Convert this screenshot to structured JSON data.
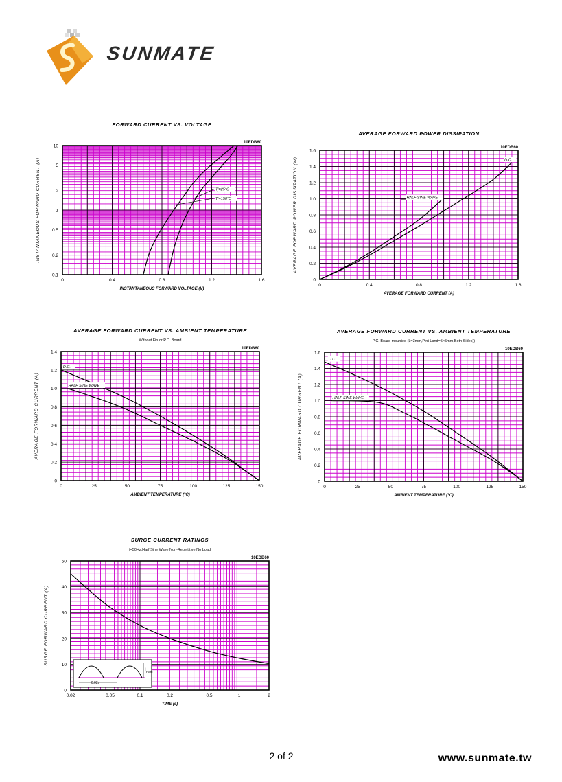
{
  "header": {
    "brand": "SUNMATE",
    "logo_icon": "sunmate-logo-icon"
  },
  "footer": {
    "page": "2 of 2",
    "website": "www.sunmate.tw"
  },
  "colors": {
    "grid": "#cc00cc",
    "curve": "#000000",
    "major_grid": "#000000"
  },
  "chart_data": [
    {
      "id": "fv",
      "type": "line",
      "title": "FORWARD CURRENT VS. VOLTAGE",
      "subtitle": "",
      "part": "10EDB60",
      "xlabel": "INSTANTANEOUS FORWARD VOLTAGE (V)",
      "ylabel": "INSTANTANEOUS FORWARD CURRENT (A)",
      "xscale": "linear",
      "yscale": "log",
      "xlim": [
        0,
        1.6
      ],
      "ylim": [
        0.1,
        10
      ],
      "xticks": [
        0,
        0.4,
        0.8,
        1.2,
        1.6
      ],
      "xtick_labels": [
        "0",
        "0.4",
        "0.8",
        "1.2",
        "1.6"
      ],
      "yticks": [
        0.1,
        0.2,
        0.5,
        1,
        2,
        5,
        10
      ],
      "ytick_labels": [
        "0.1",
        "0.2",
        "0.5",
        "1",
        "2",
        "5",
        "10"
      ],
      "series": [
        {
          "name": "Tj=25°C",
          "points": [
            [
              0.85,
              0.1
            ],
            [
              0.9,
              0.27
            ],
            [
              0.97,
              0.65
            ],
            [
              1.05,
              1.3
            ],
            [
              1.12,
              2.1
            ],
            [
              1.2,
              3.2
            ],
            [
              1.28,
              4.8
            ],
            [
              1.36,
              7.2
            ],
            [
              1.41,
              10
            ]
          ]
        },
        {
          "name": "Tj=150°C",
          "points": [
            [
              0.65,
              0.1
            ],
            [
              0.7,
              0.22
            ],
            [
              0.78,
              0.45
            ],
            [
              0.87,
              0.85
            ],
            [
              0.96,
              1.5
            ],
            [
              1.05,
              2.6
            ],
            [
              1.14,
              4.0
            ],
            [
              1.22,
              5.5
            ],
            [
              1.32,
              8.0
            ],
            [
              1.38,
              10
            ]
          ]
        }
      ],
      "annotations": [
        {
          "text": "Tj=25°C",
          "x": 1.23,
          "y": 2.0,
          "target": [
            1.05,
            1.5
          ]
        },
        {
          "text": "Tj=150°C",
          "x": 1.23,
          "y": 1.45,
          "target": [
            0.9,
            1.2
          ]
        }
      ]
    },
    {
      "id": "pd",
      "type": "line",
      "title": "AVERAGE FORWARD POWER DISSIPATION",
      "subtitle": "",
      "part": "10EDB60",
      "xlabel": "AVERAGE FORWARD CURRENT (A)",
      "ylabel": "AVERAGE FORWARD POWER DISSIPATION (W)",
      "xscale": "linear",
      "yscale": "linear",
      "xlim": [
        0,
        1.6
      ],
      "ylim": [
        0,
        1.6
      ],
      "xticks": [
        0,
        0.4,
        0.8,
        1.2,
        1.6
      ],
      "xtick_labels": [
        "0",
        "0.4",
        "0.8",
        "1.2",
        "1.6"
      ],
      "yticks": [
        0,
        0.2,
        0.4,
        0.6,
        0.8,
        1.0,
        1.2,
        1.4,
        1.6
      ],
      "ytick_labels": [
        "0",
        "0.2",
        "0.4",
        "0.6",
        "0.8",
        "1.0",
        "1.2",
        "1.4",
        "1.6"
      ],
      "series": [
        {
          "name": "D.C.",
          "points": [
            [
              0,
              0
            ],
            [
              0.2,
              0.14
            ],
            [
              0.4,
              0.3
            ],
            [
              0.6,
              0.48
            ],
            [
              0.8,
              0.66
            ],
            [
              1.0,
              0.85
            ],
            [
              1.2,
              1.04
            ],
            [
              1.4,
              1.24
            ],
            [
              1.55,
              1.45
            ]
          ]
        },
        {
          "name": "HALF SINE WAVE",
          "points": [
            [
              0,
              0
            ],
            [
              0.2,
              0.15
            ],
            [
              0.4,
              0.33
            ],
            [
              0.6,
              0.53
            ],
            [
              0.8,
              0.74
            ],
            [
              0.98,
              0.98
            ]
          ]
        }
      ],
      "annotations": [
        {
          "text": "D.C.",
          "x": 1.49,
          "y": 1.47,
          "target": null
        },
        {
          "text": "HALF SINE WAVE",
          "x": 0.7,
          "y": 1.0,
          "target": null
        }
      ]
    },
    {
      "id": "derate1",
      "type": "line",
      "title": "AVERAGE FORWARD CURRENT VS. AMBIENT TEMPERATURE",
      "subtitle": "Without Fin or P.C. Board",
      "part": "10EDB60",
      "xlabel": "AMBIENT TEMPERATURE (°C)",
      "ylabel": "AVERAGE FORWARD CURRENT (A)",
      "xscale": "linear",
      "yscale": "linear",
      "xlim": [
        0,
        150
      ],
      "ylim": [
        0,
        1.4
      ],
      "xticks": [
        0,
        25,
        50,
        75,
        100,
        125,
        150
      ],
      "xtick_labels": [
        "0",
        "25",
        "50",
        "75",
        "100",
        "125",
        "150"
      ],
      "yticks": [
        0,
        0.2,
        0.4,
        0.6,
        0.8,
        1.0,
        1.2,
        1.4
      ],
      "ytick_labels": [
        "0",
        "0.2",
        "0.4",
        "0.6",
        "0.8",
        "1.0",
        "1.2",
        "1.4"
      ],
      "series": [
        {
          "name": "D.C.",
          "points": [
            [
              0,
              1.2
            ],
            [
              25,
              1.05
            ],
            [
              50,
              0.89
            ],
            [
              75,
              0.7
            ],
            [
              100,
              0.49
            ],
            [
              125,
              0.26
            ],
            [
              140,
              0.1
            ],
            [
              150,
              0
            ]
          ]
        },
        {
          "name": "HALF SINE WAVE",
          "points": [
            [
              5,
              1.0
            ],
            [
              30,
              0.88
            ],
            [
              50,
              0.77
            ],
            [
              75,
              0.6
            ],
            [
              100,
              0.43
            ],
            [
              125,
              0.24
            ],
            [
              140,
              0.1
            ],
            [
              150,
              0
            ]
          ]
        }
      ],
      "annotations": [
        {
          "text": "D.C.",
          "x": 1.5,
          "y": 1.22,
          "target": null
        },
        {
          "text": "HALF SINE WAVE",
          "x": 5.5,
          "y": 1.02,
          "target": null
        }
      ]
    },
    {
      "id": "derate2",
      "type": "line",
      "title": "AVERAGE FORWARD CURRENT VS. AMBIENT TEMPERATURE",
      "subtitle": "P.C. Board mounted (L=3mm,Pint Land=5×5mm,Both Sides))",
      "part": "10EDB60",
      "xlabel": "AMBIENT TEMPERATURE (°C)",
      "ylabel": "AVERAGE FORWARD CURRENT (A)",
      "xscale": "linear",
      "yscale": "linear",
      "xlim": [
        0,
        150
      ],
      "ylim": [
        0,
        1.6
      ],
      "xticks": [
        0,
        25,
        50,
        75,
        100,
        125,
        150
      ],
      "xtick_labels": [
        "0",
        "25",
        "50",
        "75",
        "100",
        "125",
        "150"
      ],
      "yticks": [
        0,
        0.2,
        0.4,
        0.6,
        0.8,
        1.0,
        1.2,
        1.4,
        1.6
      ],
      "ytick_labels": [
        "0",
        "0.2",
        "0.4",
        "0.6",
        "0.8",
        "1.0",
        "1.2",
        "1.4",
        "1.6"
      ],
      "series": [
        {
          "name": "D.C.",
          "points": [
            [
              0,
              1.48
            ],
            [
              25,
              1.3
            ],
            [
              50,
              1.1
            ],
            [
              75,
              0.87
            ],
            [
              100,
              0.6
            ],
            [
              125,
              0.32
            ],
            [
              140,
              0.13
            ],
            [
              150,
              0
            ]
          ]
        },
        {
          "name": "HALF SINE WAVE",
          "points": [
            [
              5,
              1.0
            ],
            [
              40,
              0.98
            ],
            [
              60,
              0.85
            ],
            [
              80,
              0.68
            ],
            [
              100,
              0.5
            ],
            [
              125,
              0.28
            ],
            [
              140,
              0.12
            ],
            [
              150,
              0
            ]
          ]
        }
      ],
      "annotations": [
        {
          "text": "D.C.",
          "x": 3,
          "y": 1.5,
          "target": null
        },
        {
          "text": "HALF SINE WAVE",
          "x": 6,
          "y": 1.02,
          "target": null
        }
      ]
    },
    {
      "id": "surge",
      "type": "line",
      "title": "SURGE CURRENT RATINGS",
      "subtitle": "f=50Hz,Harf Sine Wave,Non-Repeltitive,No Load",
      "part": "10EDB60",
      "xlabel": "TIME (s)",
      "ylabel": "SURGE FORWARD CURRENT (A)",
      "xscale": "log",
      "yscale": "linear",
      "xlim": [
        0.02,
        2
      ],
      "ylim": [
        0,
        50
      ],
      "xticks": [
        0.02,
        0.05,
        0.1,
        0.2,
        0.5,
        1,
        2
      ],
      "xtick_labels": [
        "0.02",
        "0.05",
        "0.1",
        "0.2",
        "0.5",
        "1",
        "2"
      ],
      "yticks": [
        0,
        10,
        20,
        30,
        40,
        50
      ],
      "ytick_labels": [
        "0",
        "10",
        "20",
        "30",
        "40",
        "50"
      ],
      "series": [
        {
          "name": "IFSM",
          "points": [
            [
              0.02,
              45
            ],
            [
              0.03,
              39
            ],
            [
              0.05,
              32
            ],
            [
              0.1,
              25
            ],
            [
              0.2,
              20
            ],
            [
              0.5,
              15
            ],
            [
              1,
              12.3
            ],
            [
              2,
              10.2
            ]
          ]
        }
      ],
      "inset": {
        "label_i": "I",
        "label_sub": "FSM",
        "label_period": "0.02s"
      }
    }
  ]
}
